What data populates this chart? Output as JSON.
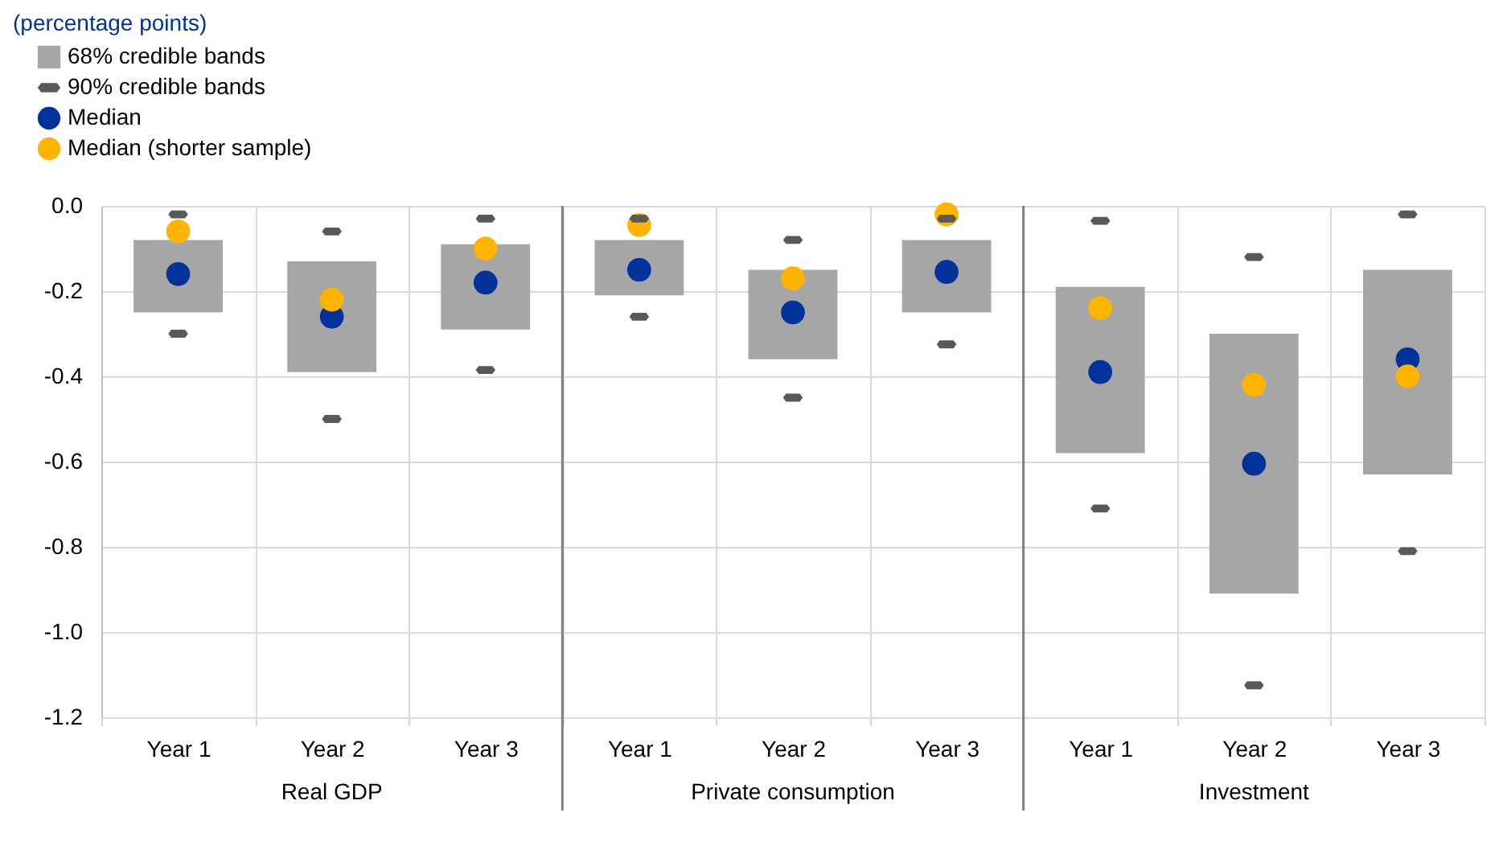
{
  "chart_data": {
    "type": "bar",
    "title": "(percentage points)",
    "categories": [
      "Year 1",
      "Year 2",
      "Year 3",
      "Year 1",
      "Year 2",
      "Year 3",
      "Year 1",
      "Year 2",
      "Year 3"
    ],
    "series": [
      {
        "name": "68% credible bands",
        "color": "#a6a6a6",
        "base": [
          -0.25,
          -0.39,
          -0.29,
          -0.21,
          -0.36,
          -0.25,
          -0.58,
          -0.91,
          -0.63
        ],
        "values": [
          0.17,
          0.26,
          0.2,
          0.13,
          0.21,
          0.17,
          0.39,
          0.61,
          0.48
        ]
      },
      {
        "name": "90% credible bands",
        "type": "scatter",
        "color": "#595959",
        "values": [
          -0.02,
          -0.06,
          -0.03,
          -0.03,
          -0.08,
          -0.03,
          -0.035,
          -0.12,
          -0.02
        ]
      },
      {
        "type": "scatter",
        "color": "#595959",
        "values": [
          -0.3,
          -0.5,
          -0.385,
          -0.26,
          -0.45,
          -0.325,
          -0.71,
          -1.125,
          -0.81
        ]
      },
      {
        "name": "Median",
        "type": "scatter",
        "marker": "circle",
        "color": "#003299",
        "values": [
          -0.16,
          -0.26,
          -0.18,
          -0.15,
          -0.25,
          -0.155,
          -0.39,
          -0.605,
          -0.36
        ]
      },
      {
        "name": "Median (shorter sample)",
        "type": "scatter",
        "marker": "circle",
        "color": "#ffb400",
        "values": [
          -0.06,
          -0.22,
          -0.1,
          -0.045,
          -0.17,
          -0.02,
          -0.24,
          -0.42,
          -0.4
        ]
      }
    ],
    "annotations": [
      "Real GDP",
      "Private consumption",
      "Investment"
    ],
    "ylim": [
      -1.2,
      0
    ],
    "yticks": [
      {
        "value": -1.2,
        "label": "-1.2"
      },
      {
        "value": -1,
        "label": "-1.0"
      },
      {
        "value": -0.8,
        "label": "-0.8"
      },
      {
        "value": -0.6,
        "label": "-0.6"
      },
      {
        "value": -0.4,
        "label": "-0.4"
      },
      {
        "value": -0.2,
        "label": "-0.2"
      },
      {
        "value": 0,
        "label": "0.0"
      }
    ],
    "grid": true,
    "legend": "top left"
  }
}
